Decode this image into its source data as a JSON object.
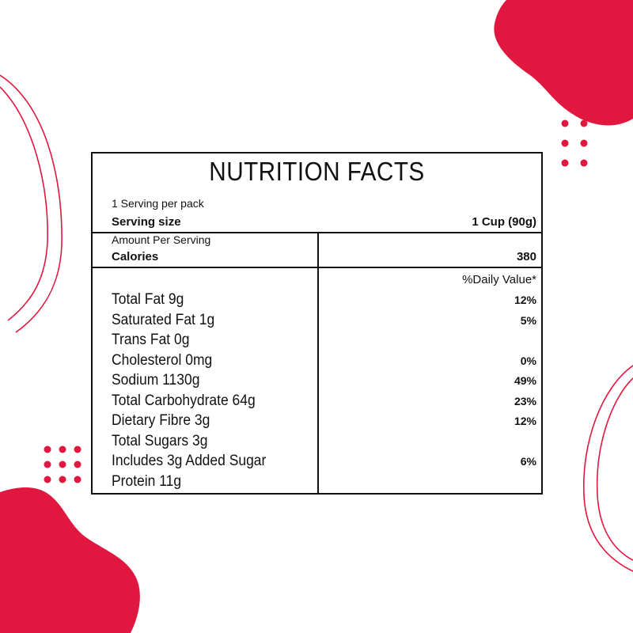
{
  "colors": {
    "accent": "#e0173f",
    "text": "#111111",
    "background": "#ffffff"
  },
  "label": {
    "title": "NUTRITION FACTS",
    "servings_per_pack": "1 Serving per pack",
    "serving_size_label": "Serving size",
    "serving_size_value": "1 Cup (90g)",
    "amount_per_serving": "Amount Per Serving",
    "calories_label": "Calories",
    "calories_value": "380",
    "daily_value_header": "%Daily Value*",
    "nutrients": [
      {
        "name": "Total Fat 9g",
        "dv": "12%"
      },
      {
        "name": "Saturated Fat 1g",
        "dv": "5%"
      },
      {
        "name": "Trans Fat 0g",
        "dv": ""
      },
      {
        "name": "Cholesterol 0mg",
        "dv": "0%"
      },
      {
        "name": "Sodium 1130g",
        "dv": "49%"
      },
      {
        "name": "Total Carbohydrate 64g",
        "dv": "23%"
      },
      {
        "name": "Dietary Fibre 3g",
        "dv": "12%"
      },
      {
        "name": "Total Sugars 3g",
        "dv": ""
      },
      {
        "name": "Includes 3g Added Sugar",
        "dv": "6%"
      },
      {
        "name": "Protein 11g",
        "dv": ""
      }
    ]
  }
}
